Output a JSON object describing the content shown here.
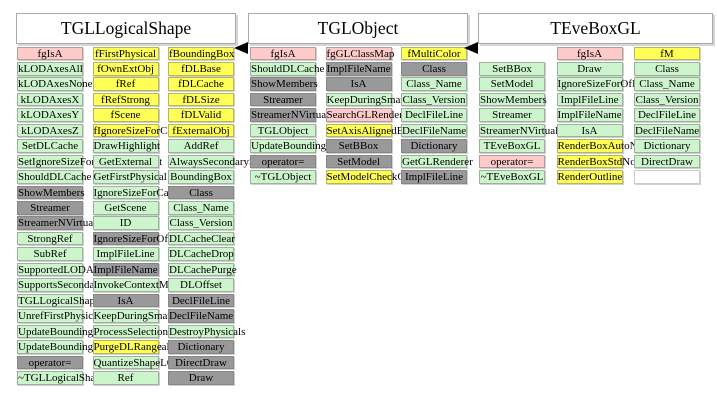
{
  "colors": {
    "static_member": "#ffcaca",
    "data_member": "#ffff55",
    "method": "#ccf5cc",
    "inherited": "#999999"
  },
  "inheritance_arrows": [
    {
      "from": "TGLObject",
      "to": "TGLLogicalShape"
    },
    {
      "from": "TEveBoxGL",
      "to": "TGLObject"
    }
  ],
  "panels": [
    {
      "title": "TGLLogicalShape",
      "rows": [
        [
          {
            "t": "fgIsA",
            "c": "p"
          },
          {
            "t": "fFirstPhysical",
            "c": "y"
          },
          {
            "t": "fBoundingBox",
            "c": "y"
          }
        ],
        [
          {
            "t": "kLODAxesAll",
            "c": "g"
          },
          {
            "t": "fOwnExtObj",
            "c": "y"
          },
          {
            "t": "fDLBase",
            "c": "y"
          }
        ],
        [
          {
            "t": "kLODAxesNone",
            "c": "g"
          },
          {
            "t": "fRef",
            "c": "y"
          },
          {
            "t": "fDLCache",
            "c": "y"
          }
        ],
        [
          {
            "t": "kLODAxesX",
            "c": "g"
          },
          {
            "t": "fRefStrong",
            "c": "y"
          },
          {
            "t": "fDLSize",
            "c": "y"
          }
        ],
        [
          {
            "t": "kLODAxesY",
            "c": "g"
          },
          {
            "t": "fScene",
            "c": "y"
          },
          {
            "t": "fDLValid",
            "c": "y"
          }
        ],
        [
          {
            "t": "kLODAxesZ",
            "c": "g"
          },
          {
            "t": "fIgnoreSizeForCameraInterest",
            "c": "y"
          },
          {
            "t": "fExternalObj",
            "c": "y"
          }
        ],
        [
          {
            "t": "SetDLCache",
            "c": "g"
          },
          {
            "t": "DrawHighlight",
            "c": "g"
          },
          {
            "t": "AddRef",
            "c": "g"
          }
        ],
        [
          {
            "t": "SetIgnoreSizeForCameraInterest",
            "c": "g"
          },
          {
            "t": "GetExternal",
            "c": "g"
          },
          {
            "t": "AlwaysSecondarySelect",
            "c": "g"
          }
        ],
        [
          {
            "t": "ShouldDLCache",
            "c": "g"
          },
          {
            "t": "GetFirstPhysical",
            "c": "g"
          },
          {
            "t": "BoundingBox",
            "c": "g"
          }
        ],
        [
          {
            "t": "ShowMembers",
            "c": "x"
          },
          {
            "t": "IgnoreSizeForCameraInterest",
            "c": "g"
          },
          {
            "t": "Class",
            "c": "x"
          }
        ],
        [
          {
            "t": "Streamer",
            "c": "x"
          },
          {
            "t": "GetScene",
            "c": "g"
          },
          {
            "t": "Class_Name",
            "c": "g"
          }
        ],
        [
          {
            "t": "StreamerNVirtual",
            "c": "x"
          },
          {
            "t": "ID",
            "c": "g"
          },
          {
            "t": "Class_Version",
            "c": "g"
          }
        ],
        [
          {
            "t": "StrongRef",
            "c": "g"
          },
          {
            "t": "IgnoreSizeForOfInterest",
            "c": "x"
          },
          {
            "t": "DLCacheClear",
            "c": "g"
          }
        ],
        [
          {
            "t": "SubRef",
            "c": "g"
          },
          {
            "t": "ImplFileLine",
            "c": "g"
          },
          {
            "t": "DLCacheDrop",
            "c": "g"
          }
        ],
        [
          {
            "t": "SupportedLODAxes",
            "c": "g"
          },
          {
            "t": "ImplFileName",
            "c": "x"
          },
          {
            "t": "DLCachePurge",
            "c": "g"
          }
        ],
        [
          {
            "t": "SupportsSecondarySelect",
            "c": "g"
          },
          {
            "t": "InvokeContextMenu",
            "c": "g"
          },
          {
            "t": "DLOffset",
            "c": "g"
          }
        ],
        [
          {
            "t": "TGLLogicalShape",
            "c": "g"
          },
          {
            "t": "IsA",
            "c": "x"
          },
          {
            "t": "DeclFileLine",
            "c": "x"
          }
        ],
        [
          {
            "t": "UnrefFirstPhysical",
            "c": "g"
          },
          {
            "t": "KeepDuringSmartRefresh",
            "c": "g"
          },
          {
            "t": "DeclFileName",
            "c": "x"
          }
        ],
        [
          {
            "t": "UpdateBoundingBox",
            "c": "g"
          },
          {
            "t": "ProcessSelection",
            "c": "g"
          },
          {
            "t": "DestroyPhysicals",
            "c": "g"
          }
        ],
        [
          {
            "t": "UpdateBoundingBoxesOfPhysicals",
            "c": "g"
          },
          {
            "t": "PurgeDLRange",
            "c": "y"
          },
          {
            "t": "Dictionary",
            "c": "x"
          }
        ],
        [
          {
            "t": "operator=",
            "c": "x"
          },
          {
            "t": "QuantizeShapeLOD",
            "c": "g"
          },
          {
            "t": "DirectDraw",
            "c": "x"
          }
        ],
        [
          {
            "t": "~TGLLogicalShape",
            "c": "g"
          },
          {
            "t": "Ref",
            "c": "g"
          },
          {
            "t": "Draw",
            "c": "x"
          }
        ]
      ]
    },
    {
      "title": "TGLObject",
      "rows": [
        [
          {
            "t": "fgIsA",
            "c": "p"
          },
          {
            "t": "fgGLClassMap",
            "c": "p"
          },
          {
            "t": "fMultiColor",
            "c": "y"
          }
        ],
        [
          {
            "t": "ShouldDLCache",
            "c": "g"
          },
          {
            "t": "ImplFileName",
            "c": "x"
          },
          {
            "t": "Class",
            "c": "x"
          }
        ],
        [
          {
            "t": "ShowMembers",
            "c": "x"
          },
          {
            "t": "IsA",
            "c": "x"
          },
          {
            "t": "Class_Name",
            "c": "g"
          }
        ],
        [
          {
            "t": "Streamer",
            "c": "x"
          },
          {
            "t": "KeepDuringSmartRefresh",
            "c": "g"
          },
          {
            "t": "Class_Version",
            "c": "g"
          }
        ],
        [
          {
            "t": "StreamerNVirtual",
            "c": "x"
          },
          {
            "t": "SearchGLRenderer",
            "c": "p"
          },
          {
            "t": "DeclFileLine",
            "c": "g"
          }
        ],
        [
          {
            "t": "TGLObject",
            "c": "g"
          },
          {
            "t": "SetAxisAlignedBBox",
            "c": "y"
          },
          {
            "t": "DeclFileName",
            "c": "g"
          }
        ],
        [
          {
            "t": "UpdateBoundingBox",
            "c": "g"
          },
          {
            "t": "SetBBox",
            "c": "x"
          },
          {
            "t": "Dictionary",
            "c": "x"
          }
        ],
        [
          {
            "t": "operator=",
            "c": "x"
          },
          {
            "t": "SetModel",
            "c": "x"
          },
          {
            "t": "GetGLRenderer",
            "c": "g"
          }
        ],
        [
          {
            "t": "~TGLObject",
            "c": "g"
          },
          {
            "t": "SetModelCheckClass",
            "c": "y"
          },
          {
            "t": "ImplFileLine",
            "c": "x"
          }
        ]
      ]
    },
    {
      "title": "TEveBoxGL",
      "rows": [
        [
          null,
          {
            "t": "fgIsA",
            "c": "p"
          },
          {
            "t": "fM",
            "c": "y"
          }
        ],
        [
          {
            "t": "SetBBox",
            "c": "g"
          },
          {
            "t": "Draw",
            "c": "g"
          },
          {
            "t": "Class",
            "c": "g"
          }
        ],
        [
          {
            "t": "SetModel",
            "c": "g"
          },
          {
            "t": "IgnoreSizeForOfInterest",
            "c": "g"
          },
          {
            "t": "Class_Name",
            "c": "g"
          }
        ],
        [
          {
            "t": "ShowMembers",
            "c": "g"
          },
          {
            "t": "ImplFileLine",
            "c": "g"
          },
          {
            "t": "Class_Version",
            "c": "g"
          }
        ],
        [
          {
            "t": "Streamer",
            "c": "g"
          },
          {
            "t": "ImplFileName",
            "c": "g"
          },
          {
            "t": "DeclFileLine",
            "c": "g"
          }
        ],
        [
          {
            "t": "StreamerNVirtual",
            "c": "g"
          },
          {
            "t": "IsA",
            "c": "g"
          },
          {
            "t": "DeclFileName",
            "c": "g"
          }
        ],
        [
          {
            "t": "TEveBoxGL",
            "c": "g"
          },
          {
            "t": "RenderBoxAutoNorm",
            "c": "y"
          },
          {
            "t": "Dictionary",
            "c": "g"
          }
        ],
        [
          {
            "t": "operator=",
            "c": "p"
          },
          {
            "t": "RenderBoxStdNorm",
            "c": "y"
          },
          {
            "t": "DirectDraw",
            "c": "g"
          }
        ],
        [
          {
            "t": "~TEveBoxGL",
            "c": "g"
          },
          {
            "t": "RenderOutline",
            "c": "y"
          },
          {
            "t": "",
            "c": "w"
          }
        ]
      ]
    }
  ]
}
